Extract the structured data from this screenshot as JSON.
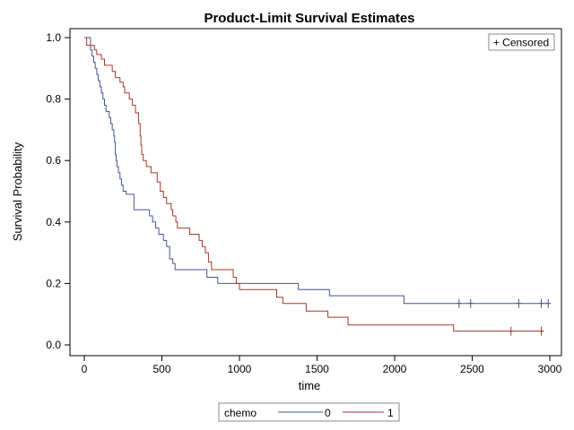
{
  "chart_data": {
    "type": "line",
    "title": "Product-Limit Survival Estimates",
    "xlabel": "time",
    "ylabel": "Survival Probability",
    "xlim": [
      0,
      3000
    ],
    "ylim": [
      0,
      1.0
    ],
    "x_ticks": [
      "0",
      "500",
      "1000",
      "1500",
      "2000",
      "2500",
      "3000"
    ],
    "y_ticks": [
      "0.0",
      "0.2",
      "0.4",
      "0.6",
      "0.8",
      "1.0"
    ],
    "grid": false,
    "step": true,
    "censored_legend": "+ Censored",
    "legend_title": "chemo",
    "legend_position": "bottom",
    "series": [
      {
        "name": "0",
        "color": "#445694",
        "points": [
          [
            0,
            1.0
          ],
          [
            40,
            0.96
          ],
          [
            50,
            0.94
          ],
          [
            60,
            0.92
          ],
          [
            70,
            0.9
          ],
          [
            80,
            0.88
          ],
          [
            90,
            0.86
          ],
          [
            100,
            0.84
          ],
          [
            110,
            0.82
          ],
          [
            120,
            0.8
          ],
          [
            130,
            0.78
          ],
          [
            140,
            0.76
          ],
          [
            160,
            0.74
          ],
          [
            170,
            0.72
          ],
          [
            180,
            0.7
          ],
          [
            190,
            0.68
          ],
          [
            195,
            0.66
          ],
          [
            200,
            0.62
          ],
          [
            205,
            0.6
          ],
          [
            210,
            0.58
          ],
          [
            220,
            0.56
          ],
          [
            230,
            0.54
          ],
          [
            240,
            0.52
          ],
          [
            250,
            0.5
          ],
          [
            270,
            0.49
          ],
          [
            320,
            0.44
          ],
          [
            420,
            0.42
          ],
          [
            440,
            0.4
          ],
          [
            460,
            0.38
          ],
          [
            480,
            0.36
          ],
          [
            510,
            0.34
          ],
          [
            530,
            0.32
          ],
          [
            550,
            0.28
          ],
          [
            570,
            0.265
          ],
          [
            585,
            0.245
          ],
          [
            790,
            0.22
          ],
          [
            860,
            0.2
          ],
          [
            1380,
            0.18
          ],
          [
            1580,
            0.16
          ],
          [
            2060,
            0.135
          ],
          [
            3000,
            0.135
          ]
        ],
        "censored_x": [
          2415,
          2490,
          2800,
          2945,
          2990
        ]
      },
      {
        "name": "1",
        "color": "#A23A2E",
        "points": [
          [
            0,
            1.0
          ],
          [
            15,
            0.975
          ],
          [
            65,
            0.96
          ],
          [
            80,
            0.945
          ],
          [
            110,
            0.93
          ],
          [
            130,
            0.91
          ],
          [
            180,
            0.89
          ],
          [
            200,
            0.87
          ],
          [
            230,
            0.855
          ],
          [
            250,
            0.84
          ],
          [
            260,
            0.82
          ],
          [
            290,
            0.8
          ],
          [
            310,
            0.78
          ],
          [
            330,
            0.755
          ],
          [
            350,
            0.72
          ],
          [
            360,
            0.68
          ],
          [
            365,
            0.65
          ],
          [
            370,
            0.62
          ],
          [
            380,
            0.6
          ],
          [
            400,
            0.58
          ],
          [
            430,
            0.56
          ],
          [
            470,
            0.53
          ],
          [
            490,
            0.5
          ],
          [
            510,
            0.48
          ],
          [
            530,
            0.46
          ],
          [
            560,
            0.44
          ],
          [
            570,
            0.42
          ],
          [
            590,
            0.4
          ],
          [
            600,
            0.38
          ],
          [
            680,
            0.36
          ],
          [
            740,
            0.34
          ],
          [
            760,
            0.32
          ],
          [
            780,
            0.3
          ],
          [
            800,
            0.27
          ],
          [
            820,
            0.245
          ],
          [
            960,
            0.22
          ],
          [
            980,
            0.2
          ],
          [
            1000,
            0.18
          ],
          [
            1240,
            0.155
          ],
          [
            1280,
            0.135
          ],
          [
            1430,
            0.11
          ],
          [
            1570,
            0.09
          ],
          [
            1700,
            0.065
          ],
          [
            2380,
            0.045
          ],
          [
            2960,
            0.045
          ]
        ],
        "censored_x": [
          2750,
          2945
        ]
      }
    ]
  }
}
